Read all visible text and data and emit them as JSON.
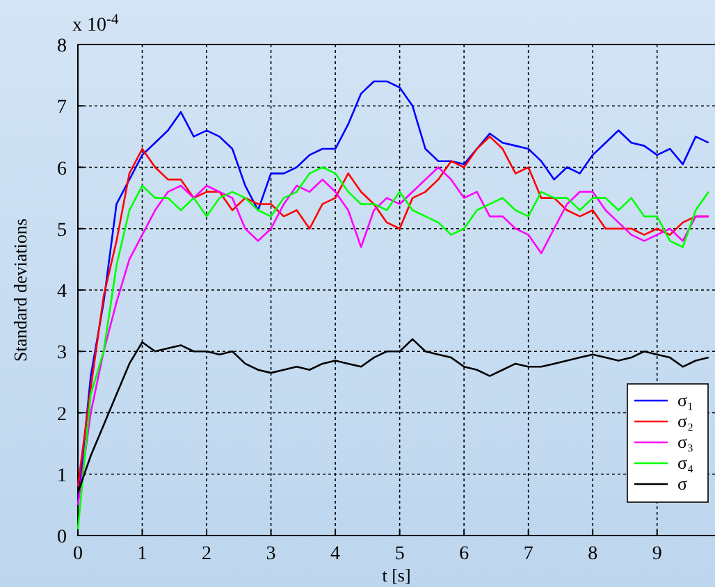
{
  "chart_data": {
    "type": "line",
    "xlabel": "t [s]",
    "ylabel": "Standard deviations",
    "annotations": [
      "x 10$^{-4}$"
    ],
    "x": [
      0,
      0.2,
      0.4,
      0.6,
      0.8,
      1,
      1.2,
      1.4,
      1.6,
      1.8,
      2,
      2.2,
      2.4,
      2.6,
      2.8,
      3,
      3.2,
      3.4,
      3.6,
      3.8,
      4,
      4.2,
      4.4,
      4.6,
      4.8,
      5,
      5.2,
      5.4,
      5.6,
      5.8,
      6,
      6.2,
      6.4,
      6.6,
      6.8,
      7,
      7.2,
      7.4,
      7.6,
      7.8,
      8,
      8.2,
      8.4,
      8.6,
      8.8,
      9,
      9.2,
      9.4,
      9.6,
      9.8
    ],
    "series": [
      {
        "name": "σ₁",
        "color": "#0000ff",
        "values": [
          0.5,
          2.6,
          3.8,
          5.4,
          5.8,
          6.2,
          6.4,
          6.6,
          6.9,
          6.5,
          6.6,
          6.5,
          6.3,
          5.7,
          5.3,
          5.9,
          5.9,
          6.0,
          6.2,
          6.3,
          6.3,
          6.7,
          7.2,
          7.4,
          7.4,
          7.3,
          7.0,
          6.3,
          6.1,
          6.1,
          6.05,
          6.3,
          6.55,
          6.4,
          6.35,
          6.3,
          6.1,
          5.8,
          6.0,
          5.9,
          6.2,
          6.4,
          6.6,
          6.4,
          6.35,
          6.2,
          6.3,
          6.05,
          6.5,
          6.4
        ]
      },
      {
        "name": "σ₂",
        "color": "#ff0000",
        "values": [
          0.8,
          2.4,
          3.9,
          4.8,
          5.9,
          6.3,
          6.0,
          5.8,
          5.8,
          5.5,
          5.6,
          5.6,
          5.3,
          5.5,
          5.4,
          5.4,
          5.2,
          5.3,
          5.0,
          5.4,
          5.5,
          5.9,
          5.6,
          5.4,
          5.1,
          5.0,
          5.5,
          5.6,
          5.8,
          6.1,
          6.0,
          6.3,
          6.5,
          6.3,
          5.9,
          6.0,
          5.5,
          5.5,
          5.3,
          5.2,
          5.3,
          5.0,
          5.0,
          5.0,
          4.9,
          5.0,
          4.9,
          5.1,
          5.2,
          5.2
        ]
      },
      {
        "name": "σ₃",
        "color": "#ff00ff",
        "values": [
          0.5,
          2.0,
          3.0,
          3.8,
          4.5,
          4.9,
          5.3,
          5.6,
          5.7,
          5.5,
          5.7,
          5.6,
          5.5,
          5.0,
          4.8,
          5.0,
          5.4,
          5.7,
          5.6,
          5.8,
          5.6,
          5.3,
          4.7,
          5.3,
          5.5,
          5.4,
          5.6,
          5.8,
          6.0,
          5.8,
          5.5,
          5.6,
          5.2,
          5.2,
          5.0,
          4.9,
          4.6,
          5.0,
          5.4,
          5.6,
          5.6,
          5.3,
          5.1,
          4.9,
          4.8,
          4.9,
          5.0,
          4.8,
          5.2,
          5.2
        ]
      },
      {
        "name": "σ₄",
        "color": "#00ff00",
        "values": [
          0.1,
          2.3,
          3.0,
          4.4,
          5.3,
          5.7,
          5.5,
          5.5,
          5.3,
          5.5,
          5.2,
          5.5,
          5.6,
          5.5,
          5.3,
          5.2,
          5.5,
          5.6,
          5.9,
          6.0,
          5.9,
          5.6,
          5.4,
          5.4,
          5.3,
          5.6,
          5.3,
          5.2,
          5.1,
          4.9,
          5.0,
          5.3,
          5.4,
          5.5,
          5.3,
          5.2,
          5.6,
          5.5,
          5.5,
          5.3,
          5.5,
          5.5,
          5.3,
          5.5,
          5.2,
          5.2,
          4.8,
          4.7,
          5.3,
          5.6
        ]
      },
      {
        "name": "σ",
        "color": "#000000",
        "values": [
          0.7,
          1.3,
          1.8,
          2.3,
          2.8,
          3.15,
          3.0,
          3.05,
          3.1,
          3.0,
          3.0,
          2.95,
          3.0,
          2.8,
          2.7,
          2.65,
          2.7,
          2.75,
          2.7,
          2.8,
          2.85,
          2.8,
          2.75,
          2.9,
          3.0,
          3.0,
          3.2,
          3.0,
          2.95,
          2.9,
          2.75,
          2.7,
          2.6,
          2.7,
          2.8,
          2.75,
          2.75,
          2.8,
          2.85,
          2.9,
          2.95,
          2.9,
          2.85,
          2.9,
          3.0,
          2.95,
          2.9,
          2.75,
          2.85,
          2.9
        ]
      }
    ],
    "xlim": [
      0,
      9.9
    ],
    "xticks": [
      0,
      1,
      2,
      3,
      4,
      5,
      6,
      7,
      8,
      9
    ],
    "ylim": [
      0,
      8
    ],
    "yticks": [
      0,
      1,
      2,
      3,
      4,
      5,
      6,
      7,
      8
    ],
    "grid": true,
    "legend": "bottom right",
    "marker": "none",
    "line_style": "solid"
  }
}
